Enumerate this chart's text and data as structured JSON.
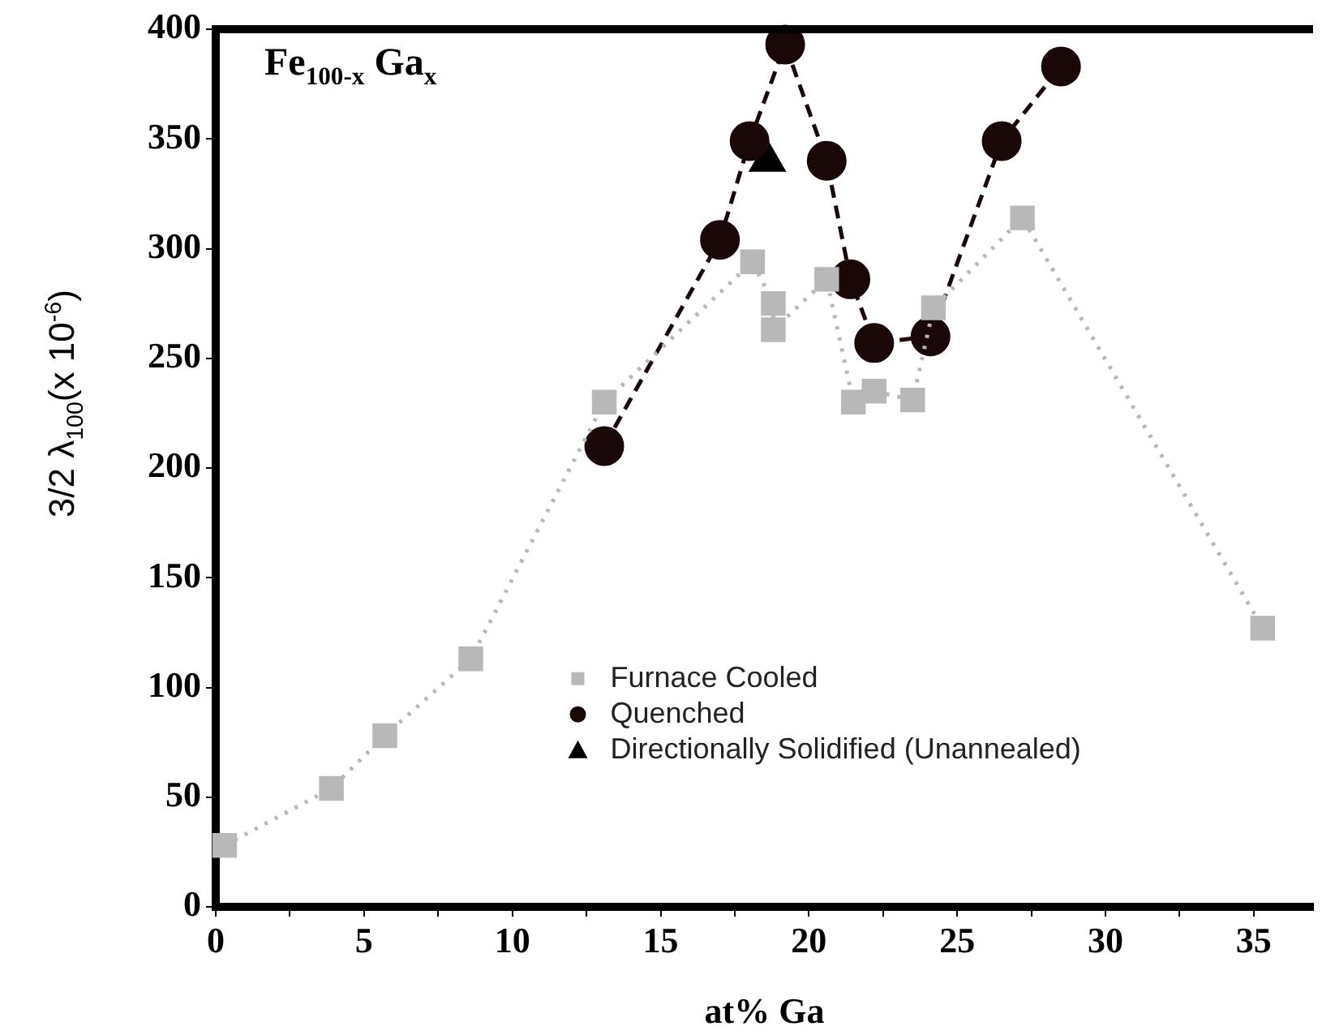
{
  "chart_data": {
    "type": "scatter",
    "title": "Fe$_{100-x}$ Ga$_{x}$",
    "xlabel": "at% Ga",
    "ylabel": "3/2 λ$_{100}$(x 10$^{-6}$)",
    "xlim": [
      0,
      37
    ],
    "xticks": [
      0,
      {
        "value": 2.5,
        "label": null
      },
      5,
      {
        "value": 7.5,
        "label": null
      },
      10,
      {
        "value": 12.5,
        "label": null
      },
      15,
      {
        "value": 17.5,
        "label": null
      },
      20,
      {
        "value": 22.5,
        "label": null
      },
      25,
      {
        "value": 27.5,
        "label": null
      },
      30,
      {
        "value": 32.5,
        "label": null
      },
      35
    ],
    "ylim": [
      0,
      400
    ],
    "yticks": [
      0,
      50,
      100,
      150,
      200,
      250,
      300,
      350,
      400
    ],
    "grid": false,
    "legend": "bottom",
    "series": [
      {
        "name": "Furnace Cooled",
        "type": "line",
        "marker": "square",
        "line_style": "dotted",
        "color": "#b8b8b8",
        "x": [
          0.3,
          3.9,
          5.7,
          8.6,
          13.1,
          18.1,
          18.8,
          18.8,
          20.6,
          21.5,
          22.2,
          23.5,
          24.2,
          27.2,
          35.3
        ],
        "values": [
          28,
          54,
          78,
          113,
          230,
          294,
          275,
          263,
          286,
          230,
          235,
          231,
          273,
          314,
          127
        ]
      },
      {
        "name": "Quenched",
        "type": "line",
        "marker": "circle",
        "line_style": "dashed",
        "color": "#1a0808",
        "x": [
          13.1,
          17.0,
          18.0,
          19.2,
          20.6,
          21.4,
          22.2,
          24.1,
          26.5,
          28.5
        ],
        "values": [
          210,
          304,
          349,
          393,
          340,
          286,
          257,
          260,
          349,
          383
        ]
      },
      {
        "name": "Directionally Solidified (Unannealed)",
        "type": "scatter",
        "marker": "triangle",
        "color": "#000000",
        "x": [
          18.6
        ],
        "values": [
          340
        ]
      }
    ]
  }
}
